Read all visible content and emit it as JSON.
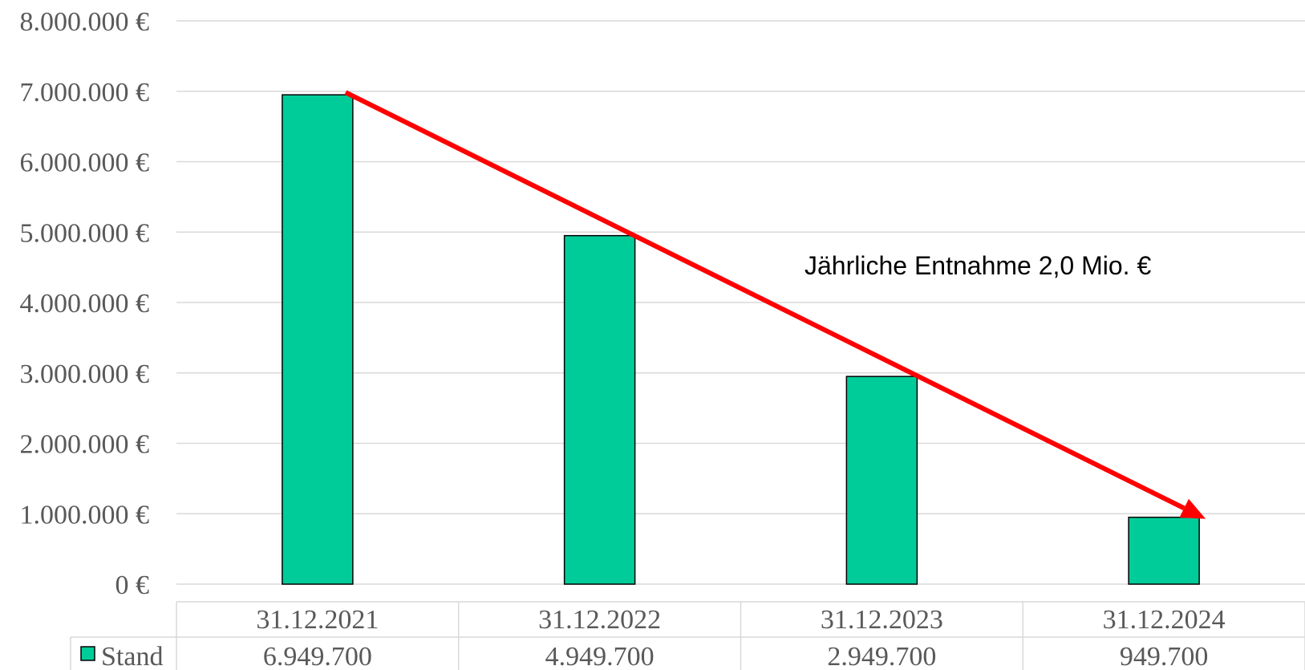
{
  "chart_data": {
    "type": "bar",
    "categories": [
      "31.12.2021",
      "31.12.2022",
      "31.12.2023",
      "31.12.2024"
    ],
    "series": [
      {
        "name": "Stand",
        "values": [
          6949700,
          4949700,
          2949700,
          949700
        ],
        "value_labels": [
          "6.949.700",
          "4.949.700",
          "2.949.700",
          "949.700"
        ],
        "color": "#00cc99"
      }
    ],
    "ylim": [
      0,
      8000000
    ],
    "yticks": [
      0,
      1000000,
      2000000,
      3000000,
      4000000,
      5000000,
      6000000,
      7000000,
      8000000
    ],
    "ytick_labels": [
      "0 €",
      "1.000.000 €",
      "2.000.000 €",
      "3.000.000 €",
      "4.000.000 €",
      "5.000.000 €",
      "6.000.000 €",
      "7.000.000 €",
      "8.000.000 €"
    ],
    "grid": true,
    "data_table": true,
    "annotation": {
      "text": "Jährliche Entnahme 2,0 Mio. €",
      "arrow_from": {
        "category": "31.12.2021",
        "value": 6949700
      },
      "arrow_to": {
        "category": "31.12.2024",
        "value": 949700
      },
      "arrow_color": "#ff0000"
    }
  }
}
